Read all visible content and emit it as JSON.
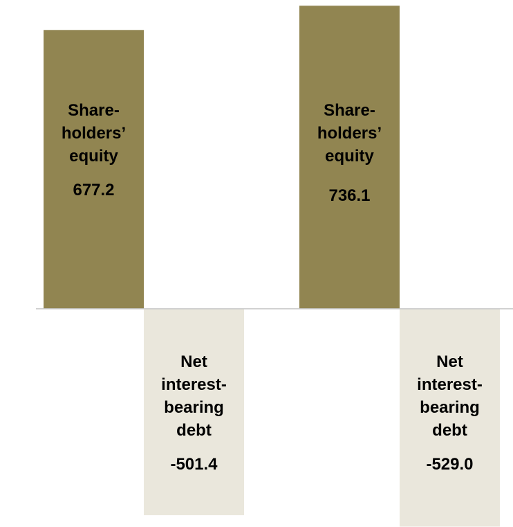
{
  "chart_data": {
    "type": "bar",
    "categories": [
      null,
      null
    ],
    "series": [
      {
        "name": "Share-holders’ equity",
        "color": "#918551",
        "values": [
          677.2,
          736.1
        ]
      },
      {
        "name": "Net interest-bearing debt",
        "color": "#eae7dc",
        "values": [
          -501.4,
          -529.0
        ],
        "value_labels": [
          "-501.4",
          "-529.0"
        ]
      }
    ],
    "ylim": [
      -530,
      750
    ]
  }
}
